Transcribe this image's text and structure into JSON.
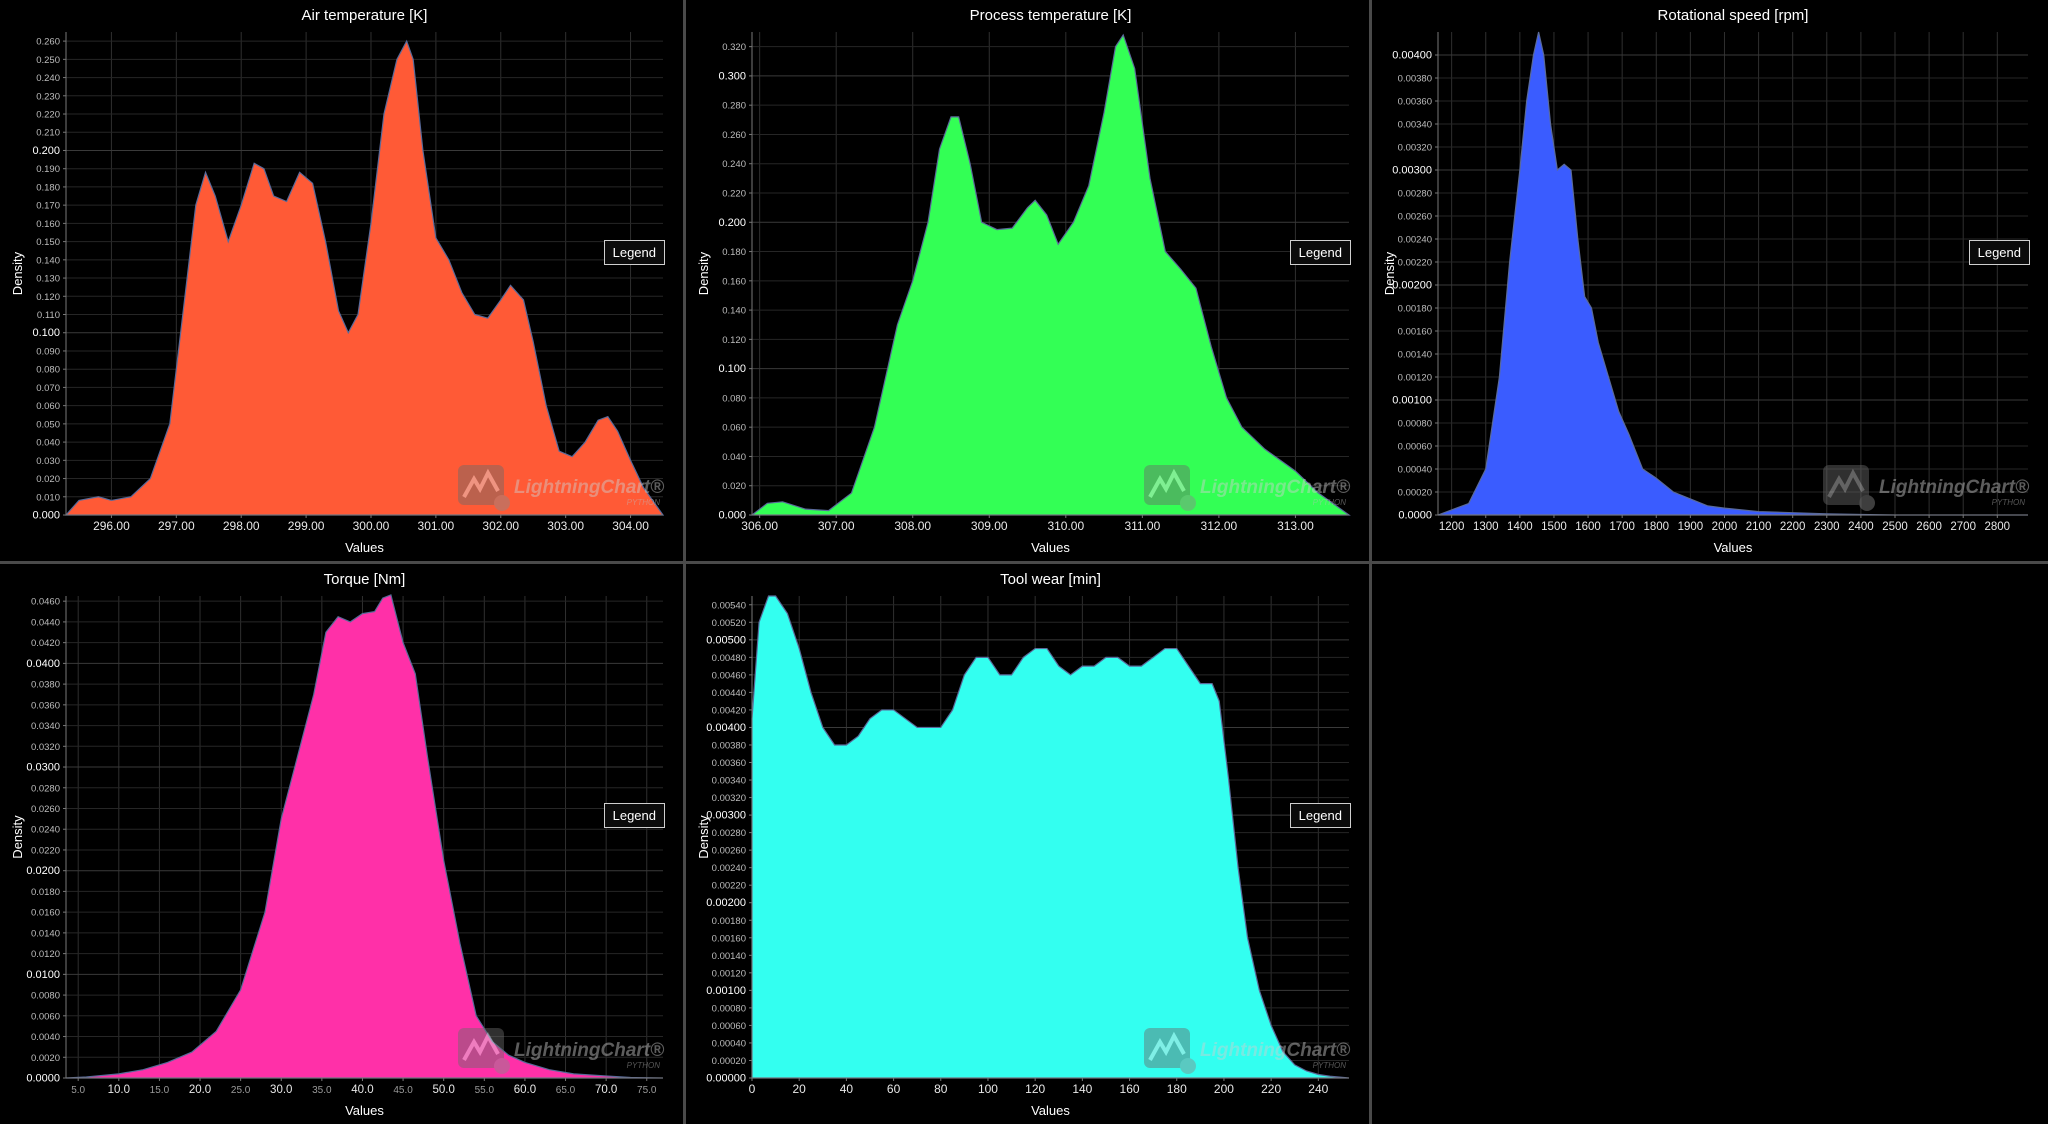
{
  "chart_data": [
    {
      "type": "area",
      "title": "Air temperature [K]",
      "xlabel": "Values",
      "ylabel": "Density",
      "legend_label": "Legend",
      "color": "#ff5a36",
      "xlim": [
        295.3,
        304.5
      ],
      "ylim": [
        0,
        0.265
      ],
      "xticks": [
        296,
        297,
        298,
        299,
        300,
        301,
        302,
        303,
        304
      ],
      "xtick_labels": [
        "296.00",
        "297.00",
        "298.00",
        "299.00",
        "300.00",
        "301.00",
        "302.00",
        "303.00",
        "304.00"
      ],
      "yticks": [
        0,
        0.01,
        0.02,
        0.03,
        0.04,
        0.05,
        0.06,
        0.07,
        0.08,
        0.09,
        0.1,
        0.11,
        0.12,
        0.13,
        0.14,
        0.15,
        0.16,
        0.17,
        0.18,
        0.19,
        0.2,
        0.21,
        0.22,
        0.23,
        0.24,
        0.25,
        0.26
      ],
      "ytick_labels": [
        "0.000",
        "0.010",
        "0.020",
        "0.030",
        "0.040",
        "0.050",
        "0.060",
        "0.070",
        "0.080",
        "0.090",
        "0.100",
        "0.110",
        "0.120",
        "0.130",
        "0.140",
        "0.150",
        "0.160",
        "0.170",
        "0.180",
        "0.190",
        "0.200",
        "0.210",
        "0.220",
        "0.230",
        "0.240",
        "0.250",
        "0.260"
      ],
      "ymajor": [
        0,
        0.1,
        0.2
      ],
      "x": [
        295.3,
        295.5,
        295.8,
        296.0,
        296.3,
        296.6,
        296.9,
        297.1,
        297.3,
        297.45,
        297.6,
        297.8,
        298.0,
        298.2,
        298.35,
        298.5,
        298.7,
        298.9,
        299.1,
        299.3,
        299.5,
        299.65,
        299.8,
        300.0,
        300.2,
        300.4,
        300.55,
        300.65,
        300.8,
        301.0,
        301.2,
        301.4,
        301.6,
        301.8,
        302.0,
        302.15,
        302.35,
        302.5,
        302.7,
        302.9,
        303.1,
        303.3,
        303.5,
        303.65,
        303.8,
        304.0,
        304.2,
        304.5
      ],
      "y": [
        0.0,
        0.008,
        0.01,
        0.008,
        0.01,
        0.02,
        0.05,
        0.11,
        0.17,
        0.188,
        0.175,
        0.15,
        0.17,
        0.193,
        0.19,
        0.175,
        0.172,
        0.188,
        0.182,
        0.15,
        0.112,
        0.1,
        0.11,
        0.16,
        0.22,
        0.25,
        0.26,
        0.25,
        0.2,
        0.152,
        0.14,
        0.122,
        0.11,
        0.108,
        0.118,
        0.126,
        0.118,
        0.095,
        0.06,
        0.035,
        0.032,
        0.04,
        0.052,
        0.054,
        0.046,
        0.03,
        0.015,
        0.0
      ]
    },
    {
      "type": "area",
      "title": "Process temperature [K]",
      "xlabel": "Values",
      "ylabel": "Density",
      "legend_label": "Legend",
      "color": "#33ff55",
      "xlim": [
        305.9,
        313.7
      ],
      "ylim": [
        0,
        0.33
      ],
      "xticks": [
        306,
        307,
        308,
        309,
        310,
        311,
        312,
        313
      ],
      "xtick_labels": [
        "306.00",
        "307.00",
        "308.00",
        "309.00",
        "310.00",
        "311.00",
        "312.00",
        "313.00"
      ],
      "yticks": [
        0,
        0.02,
        0.04,
        0.06,
        0.08,
        0.1,
        0.12,
        0.14,
        0.16,
        0.18,
        0.2,
        0.22,
        0.24,
        0.26,
        0.28,
        0.3,
        0.32
      ],
      "ytick_labels": [
        "0.000",
        "0.020",
        "0.040",
        "0.060",
        "0.080",
        "0.100",
        "0.120",
        "0.140",
        "0.160",
        "0.180",
        "0.200",
        "0.220",
        "0.240",
        "0.260",
        "0.280",
        "0.300",
        "0.320"
      ],
      "ymajor": [
        0,
        0.1,
        0.2,
        0.3
      ],
      "x": [
        305.9,
        306.1,
        306.3,
        306.6,
        306.9,
        307.2,
        307.5,
        307.8,
        308.0,
        308.2,
        308.35,
        308.5,
        308.6,
        308.75,
        308.9,
        309.1,
        309.3,
        309.5,
        309.6,
        309.75,
        309.9,
        310.1,
        310.3,
        310.5,
        310.65,
        310.75,
        310.9,
        311.1,
        311.3,
        311.5,
        311.7,
        311.9,
        312.1,
        312.3,
        312.6,
        313.0,
        313.3,
        313.7
      ],
      "y": [
        0.0,
        0.008,
        0.009,
        0.004,
        0.003,
        0.015,
        0.06,
        0.13,
        0.16,
        0.2,
        0.25,
        0.272,
        0.272,
        0.24,
        0.2,
        0.195,
        0.196,
        0.21,
        0.215,
        0.205,
        0.185,
        0.2,
        0.225,
        0.275,
        0.32,
        0.328,
        0.305,
        0.23,
        0.18,
        0.168,
        0.155,
        0.115,
        0.08,
        0.06,
        0.045,
        0.03,
        0.015,
        0.0
      ]
    },
    {
      "type": "area",
      "title": "Rotational speed [rpm]",
      "xlabel": "Values",
      "ylabel": "Density",
      "legend_label": "Legend",
      "color": "#3a5cff",
      "xlim": [
        1160,
        2890
      ],
      "ylim": [
        0,
        0.0042
      ],
      "xticks": [
        1200,
        1300,
        1400,
        1500,
        1600,
        1700,
        1800,
        1900,
        2000,
        2100,
        2200,
        2300,
        2400,
        2500,
        2600,
        2700,
        2800
      ],
      "xtick_labels": [
        "1200",
        "1300",
        "1400",
        "1500",
        "1600",
        "1700",
        "1800",
        "1900",
        "2000",
        "2100",
        "2200",
        "2300",
        "2400",
        "2500",
        "2600",
        "2700",
        "2800"
      ],
      "yticks": [
        0,
        0.0002,
        0.0004,
        0.0006,
        0.0008,
        0.001,
        0.0012,
        0.0014,
        0.0016,
        0.0018,
        0.002,
        0.0022,
        0.0024,
        0.0026,
        0.0028,
        0.003,
        0.0032,
        0.0034,
        0.0036,
        0.0038,
        0.004
      ],
      "ytick_labels": [
        "0.0000",
        "0.00020",
        "0.00040",
        "0.00060",
        "0.00080",
        "0.00100",
        "0.00120",
        "0.00140",
        "0.00160",
        "0.00180",
        "0.00200",
        "0.00220",
        "0.00240",
        "0.00260",
        "0.00280",
        "0.00300",
        "0.00320",
        "0.00340",
        "0.00360",
        "0.00380",
        "0.00400"
      ],
      "ymajor": [
        0,
        0.001,
        0.002,
        0.003,
        0.004
      ],
      "x": [
        1160,
        1250,
        1300,
        1340,
        1370,
        1400,
        1420,
        1440,
        1455,
        1470,
        1490,
        1510,
        1530,
        1550,
        1570,
        1590,
        1610,
        1630,
        1660,
        1690,
        1720,
        1760,
        1800,
        1850,
        1900,
        1950,
        2000,
        2100,
        2200,
        2300,
        2400,
        2500,
        2890
      ],
      "y": [
        0.0,
        0.0001,
        0.0004,
        0.0012,
        0.0022,
        0.003,
        0.0036,
        0.004,
        0.0042,
        0.004,
        0.0034,
        0.003,
        0.00305,
        0.003,
        0.0024,
        0.0019,
        0.0018,
        0.0015,
        0.0012,
        0.0009,
        0.0007,
        0.0004,
        0.00032,
        0.0002,
        0.00014,
        8e-05,
        6e-05,
        3e-05,
        2e-05,
        1e-05,
        5e-06,
        0.0,
        0.0
      ]
    },
    {
      "type": "area",
      "title": "Torque [Nm]",
      "xlabel": "Values",
      "ylabel": "Density",
      "legend_label": "Legend",
      "color": "#ff30a8",
      "xlim": [
        3.5,
        77
      ],
      "ylim": [
        0,
        0.0465
      ],
      "xticks": [
        5,
        10,
        15,
        20,
        25,
        30,
        35,
        40,
        45,
        50,
        55,
        60,
        65,
        70,
        75
      ],
      "xtick_labels": [
        "5.0",
        "10.0",
        "15.0",
        "20.0",
        "25.0",
        "30.0",
        "35.0",
        "40.0",
        "45.0",
        "50.0",
        "55.0",
        "60.0",
        "65.0",
        "70.0",
        "75.0"
      ],
      "yticks": [
        0,
        0.002,
        0.004,
        0.006,
        0.008,
        0.01,
        0.012,
        0.014,
        0.016,
        0.018,
        0.02,
        0.022,
        0.024,
        0.026,
        0.028,
        0.03,
        0.032,
        0.034,
        0.036,
        0.038,
        0.04,
        0.042,
        0.044,
        0.046
      ],
      "ytick_labels": [
        "0.0000",
        "0.0020",
        "0.0040",
        "0.0060",
        "0.0080",
        "0.0100",
        "0.0120",
        "0.0140",
        "0.0160",
        "0.0180",
        "0.0200",
        "0.0220",
        "0.0240",
        "0.0260",
        "0.0280",
        "0.0300",
        "0.0320",
        "0.0340",
        "0.0360",
        "0.0380",
        "0.0400",
        "0.0420",
        "0.0440",
        "0.0460"
      ],
      "ymajor": [
        0,
        0.01,
        0.02,
        0.03,
        0.04
      ],
      "x": [
        3.5,
        6,
        10,
        13,
        16,
        19,
        22,
        25,
        28,
        30,
        32,
        34,
        35.5,
        37,
        38.5,
        40,
        41.5,
        42.5,
        43.5,
        45,
        46.5,
        48,
        50,
        52,
        54,
        56,
        58,
        60,
        63,
        66,
        70,
        73,
        77
      ],
      "y": [
        0.0,
        0.0001,
        0.0004,
        0.0008,
        0.0015,
        0.0025,
        0.0045,
        0.0085,
        0.016,
        0.025,
        0.031,
        0.037,
        0.043,
        0.0445,
        0.044,
        0.0448,
        0.045,
        0.0463,
        0.0466,
        0.042,
        0.039,
        0.031,
        0.021,
        0.013,
        0.006,
        0.0035,
        0.0022,
        0.0015,
        0.0008,
        0.0004,
        0.0002,
        5e-05,
        0.0
      ]
    },
    {
      "type": "area",
      "title": "Tool wear [min]",
      "xlabel": "Values",
      "ylabel": "Density",
      "legend_label": "Legend",
      "color": "#33fff0",
      "xlim": [
        0,
        253
      ],
      "ylim": [
        0,
        0.0055
      ],
      "xticks": [
        0,
        20,
        40,
        60,
        80,
        100,
        120,
        140,
        160,
        180,
        200,
        220,
        240
      ],
      "xtick_labels": [
        "0",
        "20",
        "40",
        "60",
        "80",
        "100",
        "120",
        "140",
        "160",
        "180",
        "200",
        "220",
        "240"
      ],
      "yticks": [
        0,
        0.0002,
        0.0004,
        0.0006,
        0.0008,
        0.001,
        0.0012,
        0.0014,
        0.0016,
        0.0018,
        0.002,
        0.0022,
        0.0024,
        0.0026,
        0.0028,
        0.003,
        0.0032,
        0.0034,
        0.0036,
        0.0038,
        0.004,
        0.0042,
        0.0044,
        0.0046,
        0.0048,
        0.005,
        0.0052,
        0.0054
      ],
      "ytick_labels": [
        "0.00000",
        "0.00020",
        "0.00040",
        "0.00060",
        "0.00080",
        "0.00100",
        "0.00120",
        "0.00140",
        "0.00160",
        "0.00180",
        "0.00200",
        "0.00220",
        "0.00240",
        "0.00260",
        "0.00280",
        "0.00300",
        "0.00320",
        "0.00340",
        "0.00360",
        "0.00380",
        "0.00400",
        "0.00420",
        "0.00440",
        "0.00460",
        "0.00480",
        "0.00500",
        "0.00520",
        "0.00540"
      ],
      "ymajor": [
        0,
        0.001,
        0.002,
        0.003,
        0.004,
        0.005
      ],
      "x": [
        0,
        3,
        7,
        10,
        15,
        20,
        25,
        30,
        35,
        40,
        45,
        50,
        55,
        60,
        65,
        70,
        75,
        80,
        85,
        90,
        95,
        100,
        105,
        110,
        115,
        120,
        125,
        130,
        135,
        140,
        145,
        150,
        155,
        160,
        165,
        170,
        175,
        180,
        185,
        190,
        195,
        198,
        202,
        206,
        210,
        215,
        220,
        225,
        230,
        235,
        240,
        245,
        253
      ],
      "y": [
        0.0041,
        0.0052,
        0.0055,
        0.0055,
        0.0053,
        0.0049,
        0.0044,
        0.004,
        0.0038,
        0.0038,
        0.0039,
        0.0041,
        0.0042,
        0.0042,
        0.0041,
        0.004,
        0.004,
        0.004,
        0.0042,
        0.0046,
        0.0048,
        0.0048,
        0.0046,
        0.0046,
        0.0048,
        0.0049,
        0.0049,
        0.0047,
        0.0046,
        0.0047,
        0.0047,
        0.0048,
        0.0048,
        0.0047,
        0.0047,
        0.0048,
        0.0049,
        0.0049,
        0.0047,
        0.0045,
        0.0045,
        0.0043,
        0.0034,
        0.0024,
        0.0016,
        0.001,
        0.0006,
        0.0003,
        0.00015,
        8e-05,
        4e-05,
        2e-05,
        0.0
      ]
    }
  ],
  "watermark": {
    "brand": "LightningChart",
    "registered": "®",
    "product": "PYTHON"
  }
}
